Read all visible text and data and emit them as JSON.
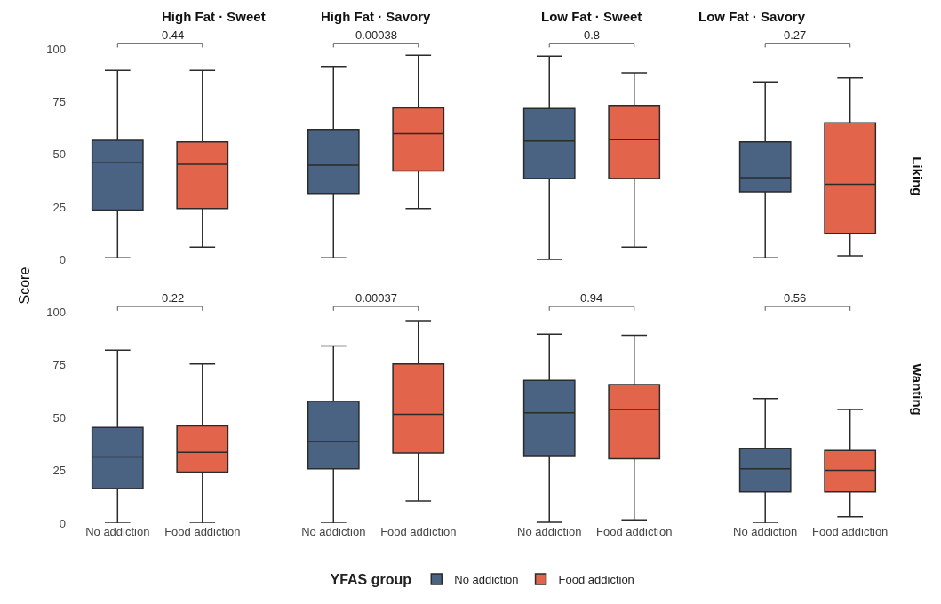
{
  "chart_data": [
    {
      "type": "box",
      "title": "High Fat · Sweet",
      "ylabel": "Score",
      "legend_title": "YFAS group",
      "legend": "bottom",
      "tick_labels": "y",
      "categories": [
        "No addiction",
        "Food addiction"
      ],
      "ylim": [
        0,
        100
      ],
      "yticks": [
        0,
        25,
        50,
        75,
        100
      ],
      "annotations": [
        "0.44"
      ],
      "series": [
        {
          "name": "No addiction",
          "color": "#4a6382",
          "boxes": [
            {
              "low": 1,
              "q1": 23.6,
              "median": 46,
              "q3": 56.7,
              "high": 89.8
            },
            null
          ]
        },
        {
          "name": "Food addiction",
          "color": "#e2644a",
          "boxes": [
            null,
            {
              "low": 6,
              "q1": 24.4,
              "median": 45.3,
              "q3": 55.9,
              "high": 89.8
            }
          ]
        }
      ]
    },
    {
      "type": "box",
      "title": "High Fat · Savory",
      "legend": "bottom",
      "tick_labels": false,
      "categories": [
        "No addiction",
        "Food addiction"
      ],
      "ylim": [
        0,
        100
      ],
      "yticks": [
        0,
        25,
        50,
        75,
        100
      ],
      "annotations": [
        "0.00038"
      ],
      "series": [
        {
          "name": "No addiction",
          "color": "#4a6382",
          "boxes": [
            {
              "low": 1,
              "q1": 31.5,
              "median": 44.9,
              "q3": 61.8,
              "high": 91.7
            },
            null
          ]
        },
        {
          "name": "Food addiction",
          "color": "#e2644a",
          "boxes": [
            null,
            {
              "low": 24.4,
              "q1": 42.1,
              "median": 59.8,
              "q3": 72,
              "high": 96.9
            }
          ]
        }
      ]
    },
    {
      "type": "box",
      "title": "Low Fat · Sweet",
      "legend": "bottom",
      "tick_labels": false,
      "categories": [
        "No addiction",
        "Food addiction"
      ],
      "ylim": [
        0,
        100
      ],
      "yticks": [
        0,
        25,
        50,
        75,
        100
      ],
      "annotations": [
        "0.8"
      ],
      "series": [
        {
          "name": "No addiction",
          "color": "#4a6382",
          "boxes": [
            {
              "low": 0,
              "q1": 38.6,
              "median": 56.3,
              "q3": 71.7,
              "high": 96.5
            },
            null
          ]
        },
        {
          "name": "Food addiction",
          "color": "#e2644a",
          "boxes": [
            null,
            {
              "low": 6,
              "q1": 38.6,
              "median": 57,
              "q3": 73.2,
              "high": 88.6
            }
          ]
        }
      ]
    },
    {
      "type": "box",
      "title": "Low Fat · Savory",
      "y2label": "Liking",
      "legend": "bottom",
      "tick_labels": false,
      "categories": [
        "No addiction",
        "Food addiction"
      ],
      "ylim": [
        0,
        100
      ],
      "yticks": [
        0,
        25,
        50,
        75,
        100
      ],
      "annotations": [
        "0.27"
      ],
      "series": [
        {
          "name": "No addiction",
          "color": "#4a6382",
          "boxes": [
            {
              "low": 1,
              "q1": 32.3,
              "median": 39,
              "q3": 55.9,
              "high": 84.3
            },
            null
          ]
        },
        {
          "name": "Food addiction",
          "color": "#e2644a",
          "boxes": [
            null,
            {
              "low": 2,
              "q1": 12.6,
              "median": 35.8,
              "q3": 65,
              "high": 86.2
            }
          ]
        }
      ]
    },
    {
      "type": "box",
      "legend": "bottom",
      "categories": [
        "No addiction",
        "Food addiction"
      ],
      "ylim": [
        0,
        100
      ],
      "yticks": [
        0,
        25,
        50,
        75,
        100
      ],
      "annotations": [
        "0.22"
      ],
      "series": [
        {
          "name": "No addiction",
          "color": "#4a6382",
          "boxes": [
            {
              "low": 0,
              "q1": 16.4,
              "median": 31.3,
              "q3": 45.3,
              "high": 82
            },
            null
          ]
        },
        {
          "name": "Food addiction",
          "color": "#e2644a",
          "boxes": [
            null,
            {
              "low": 0,
              "q1": 24.2,
              "median": 33.6,
              "q3": 46.1,
              "high": 75.4
            }
          ]
        }
      ]
    },
    {
      "type": "box",
      "legend": "bottom",
      "tick_labels": "x",
      "categories": [
        "No addiction",
        "Food addiction"
      ],
      "ylim": [
        0,
        100
      ],
      "yticks": [
        0,
        25,
        50,
        75,
        100
      ],
      "annotations": [
        "0.00037"
      ],
      "series": [
        {
          "name": "No addiction",
          "color": "#4a6382",
          "boxes": [
            {
              "low": 0,
              "q1": 25.8,
              "median": 38.7,
              "q3": 57.8,
              "high": 84
            },
            null
          ]
        },
        {
          "name": "Food addiction",
          "color": "#e2644a",
          "boxes": [
            null,
            {
              "low": 10.5,
              "q1": 33.2,
              "median": 51.6,
              "q3": 75.4,
              "high": 96
            }
          ]
        }
      ]
    },
    {
      "type": "box",
      "legend": "bottom",
      "tick_labels": "x",
      "categories": [
        "No addiction",
        "Food addiction"
      ],
      "ylim": [
        0,
        100
      ],
      "yticks": [
        0,
        25,
        50,
        75,
        100
      ],
      "annotations": [
        "0.94"
      ],
      "series": [
        {
          "name": "No addiction",
          "color": "#4a6382",
          "boxes": [
            {
              "low": 0.4,
              "q1": 32,
              "median": 52.3,
              "q3": 67.6,
              "high": 89.5
            },
            null
          ]
        },
        {
          "name": "Food addiction",
          "color": "#e2644a",
          "boxes": [
            null,
            {
              "low": 1.6,
              "q1": 30.5,
              "median": 53.9,
              "q3": 65.6,
              "high": 89
            }
          ]
        }
      ]
    },
    {
      "type": "box",
      "y2label": "Wanting",
      "legend": "bottom",
      "tick_labels": "x",
      "categories": [
        "No addiction",
        "Food addiction"
      ],
      "ylim": [
        0,
        100
      ],
      "yticks": [
        0,
        25,
        50,
        75,
        100
      ],
      "annotations": [
        "0.56"
      ],
      "series": [
        {
          "name": "No addiction",
          "color": "#4a6382",
          "boxes": [
            {
              "low": 0,
              "q1": 14.8,
              "median": 25.8,
              "q3": 35.5,
              "high": 59
            },
            null
          ]
        },
        {
          "name": "Food addiction",
          "color": "#e2644a",
          "boxes": [
            null,
            {
              "low": 3,
              "q1": 14.8,
              "median": 25,
              "q3": 34.4,
              "high": 53.9
            }
          ]
        }
      ]
    }
  ]
}
